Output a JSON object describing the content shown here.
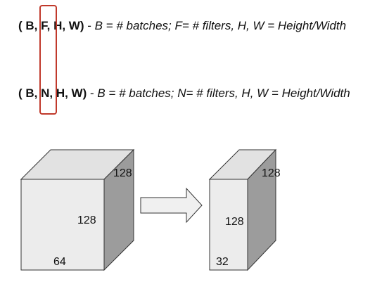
{
  "line1": {
    "open": "( B, ",
    "channel": "F,",
    "rest": " H, W)",
    "dash": " - ",
    "description": "B = # batches; F= # filters, H, W = Height/Width"
  },
  "line2": {
    "open": "( B, ",
    "channel": "N,",
    "rest": " H, W)",
    "dash": " - ",
    "description": "B = # batches; N= # filters, H, W = Height/Width"
  },
  "cube_large": {
    "height_label": "128",
    "width_label": "128",
    "depth_label": "64"
  },
  "cube_small": {
    "height_label": "128",
    "width_label": "128",
    "depth_label": "32"
  },
  "colors": {
    "highlight": "#c0392b",
    "cube_front": "#ececec",
    "cube_top": "#e2e2e2",
    "cube_side": "#9c9c9c",
    "arrow_fill": "#f0f0f0",
    "stroke": "#333333"
  },
  "icons": {
    "arrow": "right-arrow-icon"
  }
}
